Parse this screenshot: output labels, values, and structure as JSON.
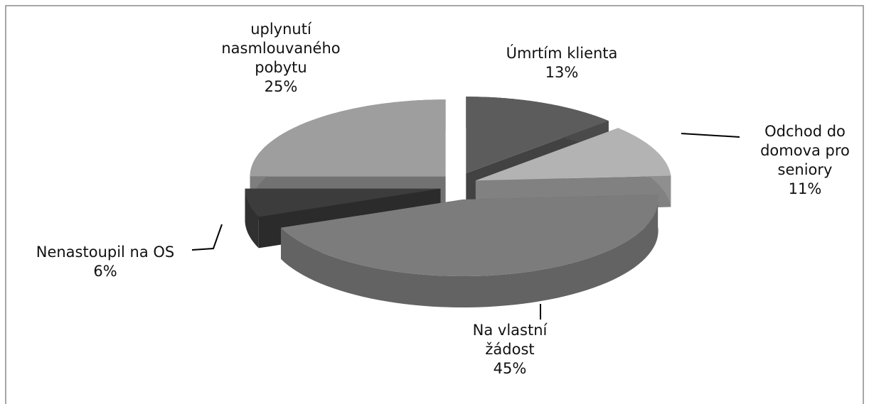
{
  "chart_data": {
    "type": "pie3d",
    "categories": [
      "Úmrtím klienta",
      "Odchod do domova pro seniory",
      "Na vlastní žádost",
      "Nenastoupil na OS",
      "uplynutí nasmlouvaného pobytu"
    ],
    "values": [
      13,
      11,
      45,
      6,
      25
    ],
    "value_labels": [
      "13%",
      "11%",
      "45%",
      "6%",
      "25%"
    ],
    "colors": [
      "#5c5c5c",
      "#b3b3b3",
      "#7c7c7c",
      "#3c3c3c",
      "#9e9e9e"
    ]
  }
}
